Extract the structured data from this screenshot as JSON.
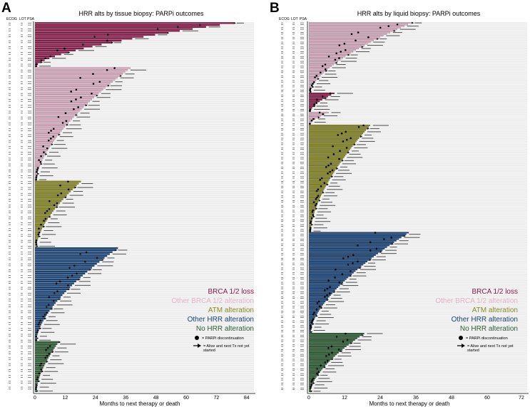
{
  "colors": {
    "brca_loss": "#8b1a4a",
    "other_brca": "#e2b4c9",
    "atm": "#8a8a24",
    "other_hrr": "#17447a",
    "no_hrr": "#2c5e33",
    "row_bg": "#ececec",
    "marker": "#000000"
  },
  "chart_data": [
    {
      "type": "bar",
      "orientation": "horizontal",
      "panel_label": "A",
      "title": "HRR alts by tissue biopsy: PARPi outcomes",
      "column_headers": [
        "ECOG",
        "LOT",
        "PSA"
      ],
      "xlabel": "Months to next therapy or death",
      "ylabel": "",
      "xlim": [
        0,
        87
      ],
      "x_ticks": [
        "0",
        "12",
        "24",
        "36",
        "48",
        "60",
        "72",
        "84"
      ],
      "legend": {
        "placement": "bottom-right",
        "categories": [
          "BRCA 1/2 loss",
          "Other BRCA 1/2 alteration",
          "ATM alteration",
          "Other HRR alteration",
          "No HRR alteration"
        ],
        "symbols": [
          "= PARPi discontinuation",
          "= Alive and next Tx not yet started"
        ]
      },
      "groups": [
        {
          "name": "BRCA 1/2 loss",
          "color_key": "brca_loss",
          "start": 0,
          "rows": 23,
          "max": 80
        },
        {
          "name": "Other BRCA 1/2 alteration",
          "color_key": "other_brca",
          "start": 23,
          "rows": 58,
          "max": 38
        },
        {
          "name": "ATM alteration",
          "color_key": "atm",
          "start": 81,
          "rows": 34,
          "max": 18
        },
        {
          "name": "Other HRR alteration",
          "color_key": "other_hrr",
          "start": 115,
          "rows": 48,
          "max": 33
        },
        {
          "name": "No HRR alteration",
          "color_key": "no_hrr",
          "start": 163,
          "rows": 26,
          "max": 9
        }
      ],
      "total_rows": 189
    },
    {
      "type": "bar",
      "orientation": "horizontal",
      "panel_label": "B",
      "title": "HRR alts by liquid biopsy: PARPi outcomes",
      "column_headers": [
        "ECOG",
        "LOT",
        "PSA"
      ],
      "xlabel": "Months to next therapy or death",
      "ylabel": "",
      "xlim": [
        0,
        72
      ],
      "x_ticks": [
        "0",
        "12",
        "24",
        "36",
        "48",
        "60",
        "72"
      ],
      "legend": {
        "placement": "bottom-right",
        "categories": [
          "BRCA 1/2 loss",
          "Other BRCA 1/2 alteration",
          "ATM alteration",
          "Other HRR alteration",
          "No HRR alteration"
        ],
        "symbols": [
          "= PARPi discontinuation",
          "= Alive and next Tx not yet started"
        ]
      },
      "groups": [
        {
          "name": "Other BRCA 1/2 alteration",
          "color_key": "other_brca",
          "start": 0,
          "rows": 44,
          "max": 34
        },
        {
          "name": "BRCA 1/2 loss",
          "color_key": "brca_loss",
          "start": 44,
          "rows": 12,
          "max": 8
        },
        {
          "name": "Other BRCA 1/2 alteration",
          "color_key": "other_brca",
          "start": 56,
          "rows": 8,
          "max": 6
        },
        {
          "name": "ATM alteration",
          "color_key": "atm",
          "start": 64,
          "rows": 67,
          "max": 20
        },
        {
          "name": "Other HRR alteration",
          "color_key": "other_hrr",
          "start": 131,
          "rows": 63,
          "max": 33
        },
        {
          "name": "No HRR alteration",
          "color_key": "no_hrr",
          "start": 194,
          "rows": 37,
          "max": 18
        }
      ],
      "total_rows": 231
    }
  ]
}
